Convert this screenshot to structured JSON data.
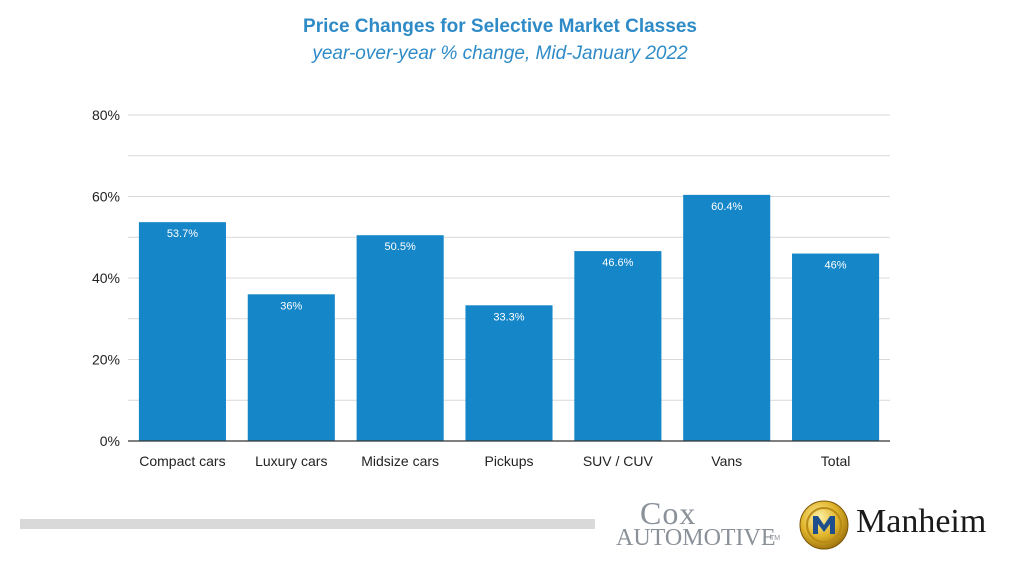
{
  "chart_data": {
    "type": "bar",
    "title": "Price Changes for Selective Market Classes",
    "subtitle": "year-over-year % change, Mid-January 2022",
    "categories": [
      "Compact cars",
      "Luxury cars",
      "Midsize cars",
      "Pickups",
      "SUV / CUV",
      "Vans",
      "Total"
    ],
    "values": [
      53.7,
      36,
      50.5,
      33.3,
      46.6,
      60.4,
      46
    ],
    "data_labels": [
      "53.7%",
      "36%",
      "50.5%",
      "33.3%",
      "46.6%",
      "60.4%",
      "46%"
    ],
    "ylim": [
      0,
      80
    ],
    "y_ticks": [
      0,
      20,
      40,
      60,
      80
    ],
    "y_tick_labels": [
      "0%",
      "20%",
      "40%",
      "60%",
      "80%"
    ],
    "xlabel": "",
    "ylabel": "",
    "grid": true,
    "legend": "none",
    "bar_color": "#1586c8"
  },
  "branding": {
    "cox_line1": "Cox",
    "cox_line2": "Automotive",
    "cox_tm": "TM",
    "manheim": "Manheim"
  },
  "colors": {
    "title": "#2e8bc7",
    "bar": "#1586c8",
    "grid": "#d9d9d9",
    "axis": "#333333"
  }
}
